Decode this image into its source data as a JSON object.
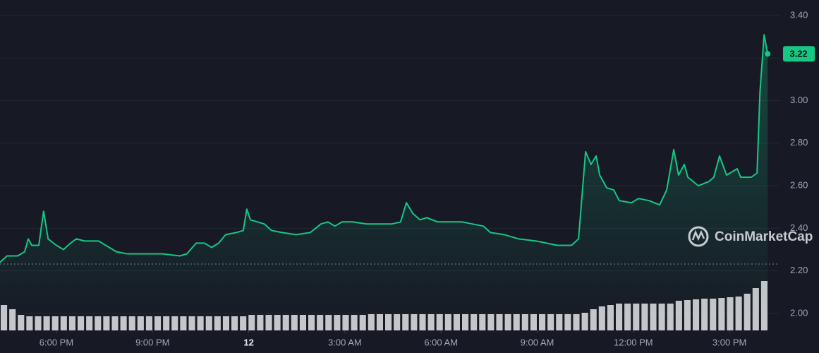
{
  "chart_data": [
    {
      "type": "line",
      "x": [
        16.24,
        16.46,
        16.79,
        17.01,
        17.12,
        17.23,
        17.45,
        17.6,
        17.74,
        18.0,
        18.22,
        18.44,
        18.62,
        18.88,
        19.32,
        19.54,
        19.87,
        20.2,
        20.53,
        20.86,
        21.3,
        21.85,
        22.07,
        22.36,
        22.62,
        22.84,
        23.06,
        23.28,
        23.61,
        23.83,
        23.94,
        24.05,
        24.27,
        24.49,
        24.71,
        25.04,
        25.48,
        25.92,
        26.25,
        26.47,
        26.69,
        26.91,
        27.24,
        27.68,
        28.12,
        28.46,
        28.74,
        28.92,
        29.12,
        29.34,
        29.56,
        29.89,
        30.33,
        30.66,
        30.99,
        31.32,
        31.54,
        31.98,
        32.42,
        32.97,
        33.63,
        34.07,
        34.29,
        34.51,
        34.68,
        34.84,
        34.95,
        35.17,
        35.39,
        35.56,
        35.94,
        36.16,
        36.49,
        36.82,
        37.04,
        37.26,
        37.41,
        37.59,
        37.7,
        38.03,
        38.36,
        38.51,
        38.69,
        38.91,
        39.24,
        39.35,
        39.68,
        39.86,
        39.95,
        40.08,
        40.19
      ],
      "series": [
        {
          "color": "#16c784",
          "values": [
            2.24,
            2.27,
            2.27,
            2.29,
            2.35,
            2.32,
            2.32,
            2.48,
            2.35,
            2.32,
            2.3,
            2.33,
            2.35,
            2.34,
            2.34,
            2.32,
            2.29,
            2.28,
            2.28,
            2.28,
            2.28,
            2.27,
            2.28,
            2.33,
            2.33,
            2.31,
            2.33,
            2.37,
            2.38,
            2.39,
            2.49,
            2.44,
            2.43,
            2.42,
            2.39,
            2.38,
            2.37,
            2.38,
            2.42,
            2.43,
            2.41,
            2.43,
            2.43,
            2.42,
            2.42,
            2.42,
            2.43,
            2.52,
            2.47,
            2.44,
            2.45,
            2.43,
            2.43,
            2.43,
            2.42,
            2.41,
            2.38,
            2.37,
            2.35,
            2.34,
            2.32,
            2.32,
            2.35,
            2.76,
            2.7,
            2.74,
            2.65,
            2.59,
            2.58,
            2.53,
            2.52,
            2.54,
            2.53,
            2.51,
            2.58,
            2.77,
            2.65,
            2.7,
            2.64,
            2.6,
            2.62,
            2.64,
            2.74,
            2.65,
            2.68,
            2.64,
            2.64,
            2.66,
            3.04,
            3.31,
            3.22
          ]
        }
      ],
      "xlim": [
        16.24,
        40.56
      ],
      "xticks": [
        {
          "value": 18,
          "label": "6:00 PM"
        },
        {
          "value": 21,
          "label": "9:00 PM"
        },
        {
          "value": 24,
          "label": "12"
        },
        {
          "value": 27,
          "label": "3:00 AM"
        },
        {
          "value": 30,
          "label": "6:00 AM"
        },
        {
          "value": 33,
          "label": "9:00 AM"
        },
        {
          "value": 36,
          "label": "12:00 PM"
        },
        {
          "value": 39,
          "label": "3:00 PM"
        }
      ],
      "ylim": [
        1.92,
        3.473
      ],
      "yticks": [
        {
          "value": 2.0,
          "label": "2.00"
        },
        {
          "value": 2.2,
          "label": "2.20"
        },
        {
          "value": 2.4,
          "label": "2.40"
        },
        {
          "value": 2.6,
          "label": "2.60"
        },
        {
          "value": 2.8,
          "label": "2.80"
        },
        {
          "value": 3.0,
          "label": "3.00"
        },
        {
          "value": 3.2,
          "label": "3.20"
        },
        {
          "value": 3.4,
          "label": "3.40"
        }
      ],
      "grid": true,
      "reference_line": 2.232,
      "last_price": {
        "value": 3.22,
        "label": "3.22"
      },
      "watermark": "CoinMarketCap"
    },
    {
      "type": "bar",
      "color": "#d9d9de",
      "values": [
        36,
        30,
        22,
        20,
        20,
        20,
        20,
        20,
        20,
        20,
        20,
        20,
        20,
        20,
        20,
        20,
        20,
        20,
        20,
        20,
        20,
        20,
        20,
        20,
        20,
        20,
        20,
        20,
        20,
        22,
        22,
        22,
        22,
        22,
        22,
        22,
        22,
        22,
        22,
        22,
        22,
        22,
        22,
        23,
        23,
        23,
        23,
        23,
        23,
        23,
        23,
        23,
        23,
        23,
        23,
        23,
        23,
        23,
        23,
        23,
        23,
        23,
        23,
        23,
        23,
        23,
        23,
        23,
        25,
        30,
        34,
        36,
        38,
        38,
        38,
        38,
        38,
        38,
        38,
        42,
        43,
        44,
        45,
        45,
        46,
        47,
        48,
        52,
        60,
        70
      ]
    }
  ]
}
